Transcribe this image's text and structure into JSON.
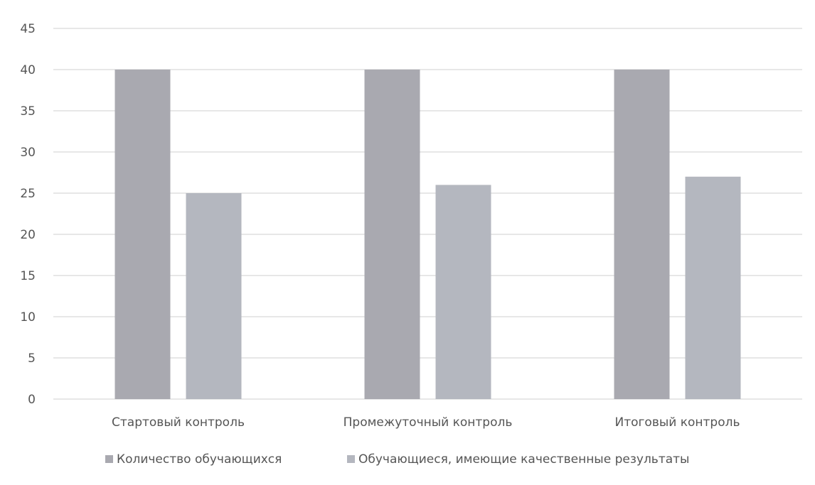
{
  "chart_data": {
    "type": "bar",
    "categories": [
      "Стартовый контроль",
      "Промежуточный контроль",
      "Итоговый контроль"
    ],
    "series": [
      {
        "name": "Количество обучающихся",
        "values": [
          40,
          40,
          40
        ],
        "color": "#a9a9b0"
      },
      {
        "name": "Обучающиеся, имеющие качественные результаты",
        "values": [
          25,
          26,
          27
        ],
        "color": "#b4b7bf"
      }
    ],
    "ylim": [
      0,
      45
    ],
    "yticks": [
      "0",
      "5",
      "10",
      "15",
      "20",
      "25",
      "30",
      "35",
      "40",
      "45"
    ],
    "grid": true,
    "legend_position": "bottom",
    "gridline_color": "#cfcfcf"
  }
}
